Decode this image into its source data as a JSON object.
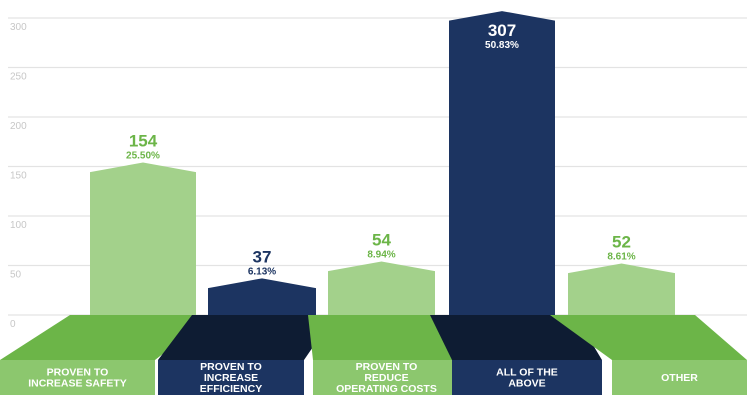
{
  "chart_data": {
    "type": "bar",
    "categories": [
      [
        "PROVEN TO",
        "INCREASE SAFETY"
      ],
      [
        "PROVEN TO",
        "INCREASE",
        "EFFICIENCY"
      ],
      [
        "PROVEN TO",
        "REDUCE",
        "OPERATING COSTS"
      ],
      [
        "ALL OF THE",
        "ABOVE"
      ],
      [
        "OTHER"
      ]
    ],
    "values": [
      154,
      37,
      54,
      307,
      52
    ],
    "value_labels": [
      "154",
      "37",
      "54",
      "307",
      "52"
    ],
    "percent_labels": [
      "25.50%",
      "6.13%",
      "8.94%",
      "50.83%",
      "8.61%"
    ],
    "y_ticks": [
      "0",
      "50",
      "100",
      "150",
      "200",
      "250",
      "300"
    ],
    "ylim": [
      0,
      310
    ],
    "grid": true,
    "legend": "none",
    "colors": {
      "light_bar": "#a3d18b",
      "dark_bar": "#1c3461",
      "light_base": "#6cb548",
      "dark_base": "#0e1c33",
      "light_label_bg": "#8cc76e",
      "dark_label_bg": "#1c3461",
      "light_text": "#6cb548",
      "dark_text": "#1c3461",
      "grid": "#e3e3e3",
      "tick_text": "#c7c7c7"
    },
    "bar_styles": [
      "light",
      "dark",
      "light",
      "dark",
      "light"
    ]
  }
}
